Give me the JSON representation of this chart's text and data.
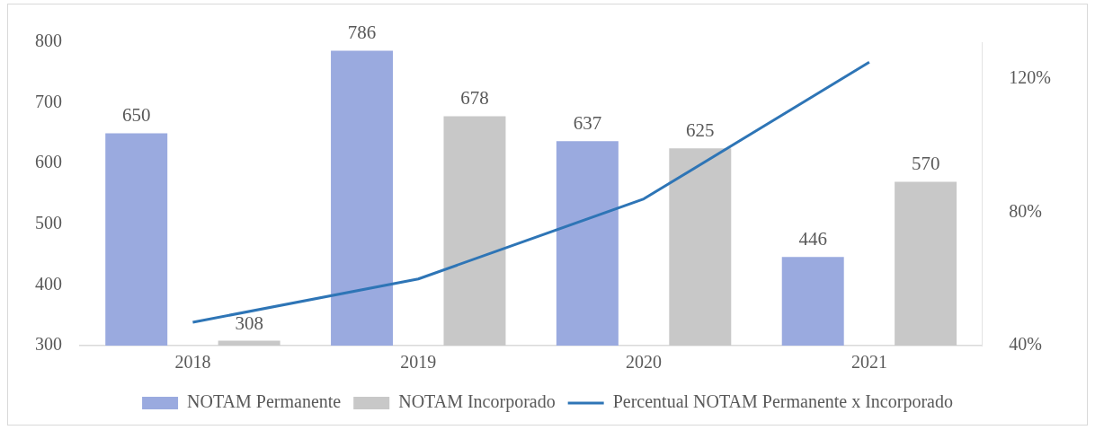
{
  "chart_data": {
    "type": "bar",
    "categories": [
      "2018",
      "2019",
      "2020",
      "2021"
    ],
    "series": [
      {
        "name": "NOTAM Permanente",
        "color": "#9aaadf",
        "values": [
          650,
          786,
          637,
          446
        ],
        "value_labels": [
          "650",
          "786",
          "637",
          "446"
        ]
      },
      {
        "name": "NOTAM Incorporado",
        "color": "#c8c8c8",
        "values": [
          308,
          678,
          625,
          570
        ],
        "value_labels": [
          "308",
          "678",
          "625",
          "570"
        ]
      },
      {
        "name": "Percentual NOTAM Permanente x Incorporado",
        "type": "line",
        "axis": "y2",
        "color": "#2e75b6",
        "values": [
          47,
          60,
          84,
          125
        ]
      }
    ],
    "ylim": [
      300,
      800
    ],
    "yticks": [
      300,
      400,
      500,
      600,
      700,
      800
    ],
    "y2lim": [
      40,
      131
    ],
    "y2ticks": [
      {
        "value": 40,
        "label": "40%"
      },
      {
        "value": 80,
        "label": "80%"
      },
      {
        "value": 120,
        "label": "120%"
      }
    ],
    "grid": false,
    "legend": "bottom",
    "marker": "none"
  }
}
